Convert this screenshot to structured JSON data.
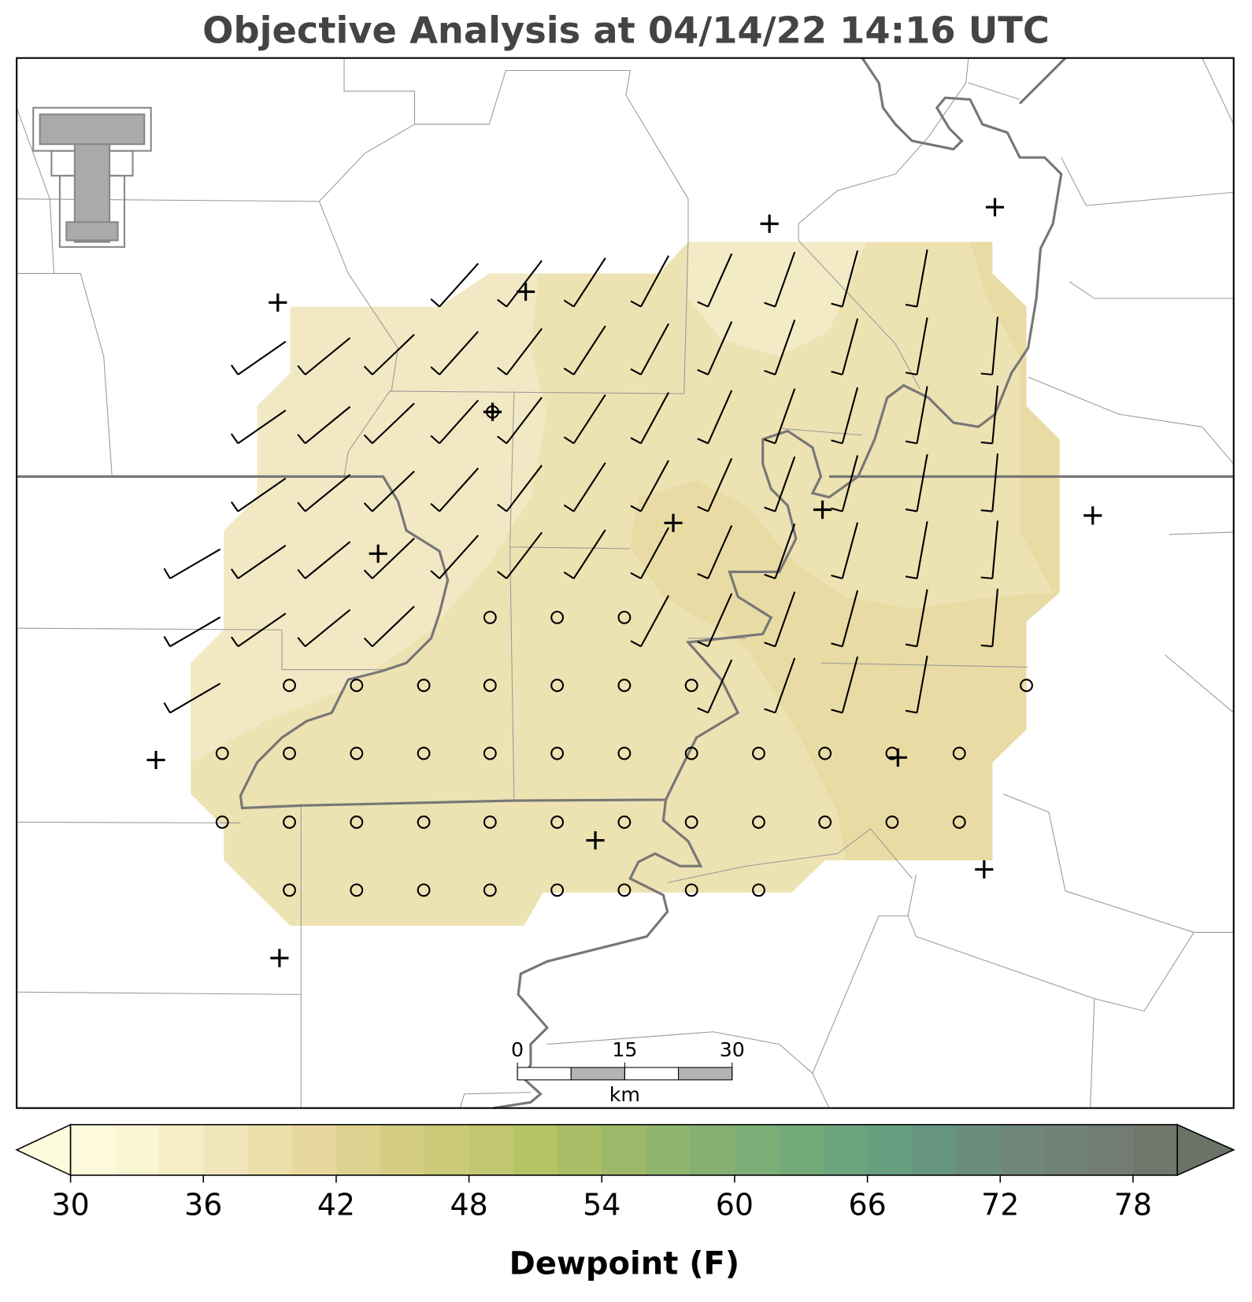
{
  "title": "Objective Analysis at 04/14/22 14:16 UTC",
  "colorbar": {
    "label": "Dewpoint (F)",
    "levels": [
      30,
      32,
      34,
      36,
      38,
      40,
      42,
      44,
      46,
      48,
      50,
      52,
      54,
      56,
      58,
      60,
      62,
      64,
      66,
      68,
      70,
      72,
      74,
      76,
      78,
      80
    ],
    "colors": [
      "#fdf9dc",
      "#faf5d3",
      "#f5edc6",
      "#f1e6bb",
      "#ebdfac",
      "#e6d89e",
      "#ddd28f",
      "#d4cd82",
      "#cbca78",
      "#c1c76f",
      "#b6c468",
      "#a9be66",
      "#9db868",
      "#91b46d",
      "#86b072",
      "#7dad76",
      "#74a97a",
      "#6ca57d",
      "#649f80",
      "#659580",
      "#6a8d7c",
      "#6f8779",
      "#728176",
      "#727c72",
      "#70766c"
    ],
    "extend_colors": [
      "#fefcde",
      "#6b7266"
    ],
    "ticks": [
      30,
      36,
      42,
      48,
      54,
      60,
      66,
      72,
      78
    ]
  },
  "scale_bar": {
    "ticks": [
      0,
      15,
      30
    ],
    "unit": "km"
  }
}
